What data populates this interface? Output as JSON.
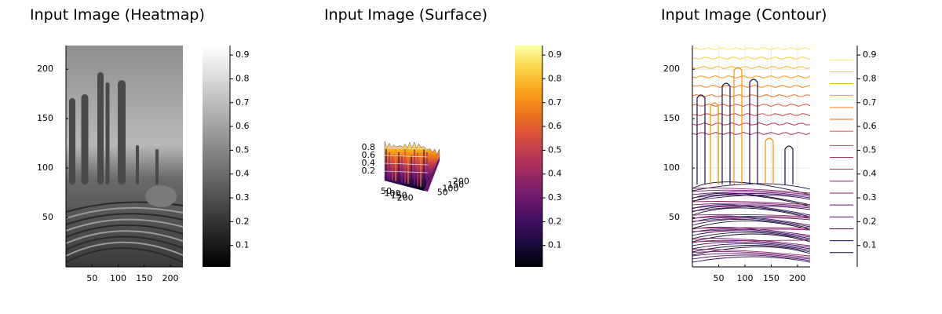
{
  "chart_data": [
    {
      "type": "heatmap",
      "title": "Input Image (Heatmap)",
      "xlim": [
        0,
        224
      ],
      "ylim": [
        0,
        224
      ],
      "xticks": [
        50,
        100,
        150,
        200
      ],
      "yticks": [
        50,
        100,
        150,
        200
      ],
      "clim": [
        0.01,
        0.94
      ],
      "cticks": [
        0.1,
        0.2,
        0.3,
        0.4,
        0.5,
        0.6,
        0.7,
        0.8,
        0.9
      ],
      "colormap": "grays"
    },
    {
      "type": "surface",
      "title": "Input Image (Surface)",
      "xlim": [
        0,
        224
      ],
      "ylim": [
        0,
        224
      ],
      "zlim": [
        0,
        1
      ],
      "xticks": [
        50,
        100,
        150,
        200
      ],
      "yticks": [
        50,
        100,
        150,
        200
      ],
      "zticks": [
        0.2,
        0.4,
        0.6,
        0.8
      ],
      "clim": [
        0.01,
        0.94
      ],
      "cticks": [
        0.1,
        0.2,
        0.3,
        0.4,
        0.5,
        0.6,
        0.7,
        0.8,
        0.9
      ],
      "colormap": "inferno"
    },
    {
      "type": "contour",
      "title": "Input Image (Contour)",
      "xlim": [
        0,
        224
      ],
      "ylim": [
        0,
        224
      ],
      "xticks": [
        50,
        100,
        150,
        200
      ],
      "yticks": [
        50,
        100,
        150,
        200
      ],
      "levels": [
        0.07,
        0.12,
        0.17,
        0.22,
        0.27,
        0.32,
        0.37,
        0.42,
        0.47,
        0.52,
        0.58,
        0.63,
        0.68,
        0.73,
        0.78,
        0.83,
        0.88
      ],
      "clim": [
        0.01,
        0.94
      ],
      "cticks": [
        0.1,
        0.2,
        0.3,
        0.4,
        0.5,
        0.6,
        0.7,
        0.8,
        0.9
      ],
      "colormap": "inferno",
      "grid": true
    }
  ]
}
